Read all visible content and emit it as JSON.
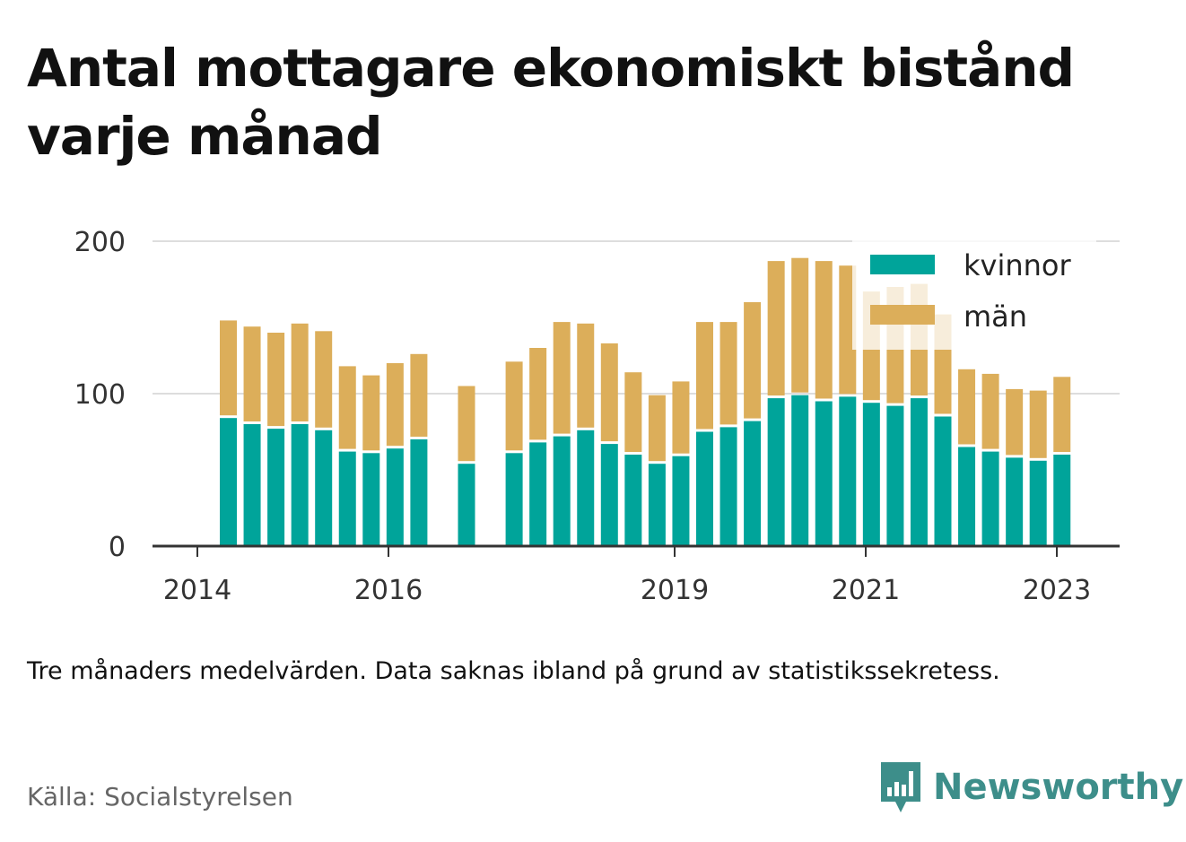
{
  "title": "Antal mottagare ekonomiskt bistånd varje månad",
  "note": "Tre månaders medelvärden. Data saknas ibland på grund av statistikssekretess.",
  "source": "Källa: Socialstyrelsen",
  "brand": {
    "name": "Newsworthy",
    "color": "#3d8e8a",
    "icon": "bar-chart-speech-bubble-icon"
  },
  "chart_data": {
    "type": "bar",
    "stacked": true,
    "x_tick_labels": [
      "2014",
      "2016",
      "2019",
      "2021",
      "2023"
    ],
    "y_ticks": [
      0,
      100,
      200
    ],
    "ylim": [
      0,
      200
    ],
    "grid": true,
    "legend_position": "top-right",
    "series": [
      {
        "name": "kvinnor",
        "color": "#00a49a",
        "values": [
          84,
          80,
          77,
          80,
          76,
          62,
          61,
          64,
          70,
          null,
          54,
          null,
          61,
          68,
          72,
          76,
          67,
          60,
          54,
          59,
          75,
          78,
          82,
          97,
          99,
          95,
          98,
          94,
          92,
          97,
          85,
          65,
          62,
          58,
          56,
          60
        ]
      },
      {
        "name": "män",
        "color": "#dcae5a",
        "values": [
          64,
          64,
          63,
          66,
          65,
          56,
          51,
          56,
          56,
          null,
          51,
          null,
          60,
          62,
          75,
          70,
          66,
          54,
          45,
          49,
          72,
          69,
          78,
          90,
          90,
          92,
          86,
          73,
          78,
          75,
          67,
          51,
          51,
          45,
          46,
          51
        ]
      }
    ]
  }
}
